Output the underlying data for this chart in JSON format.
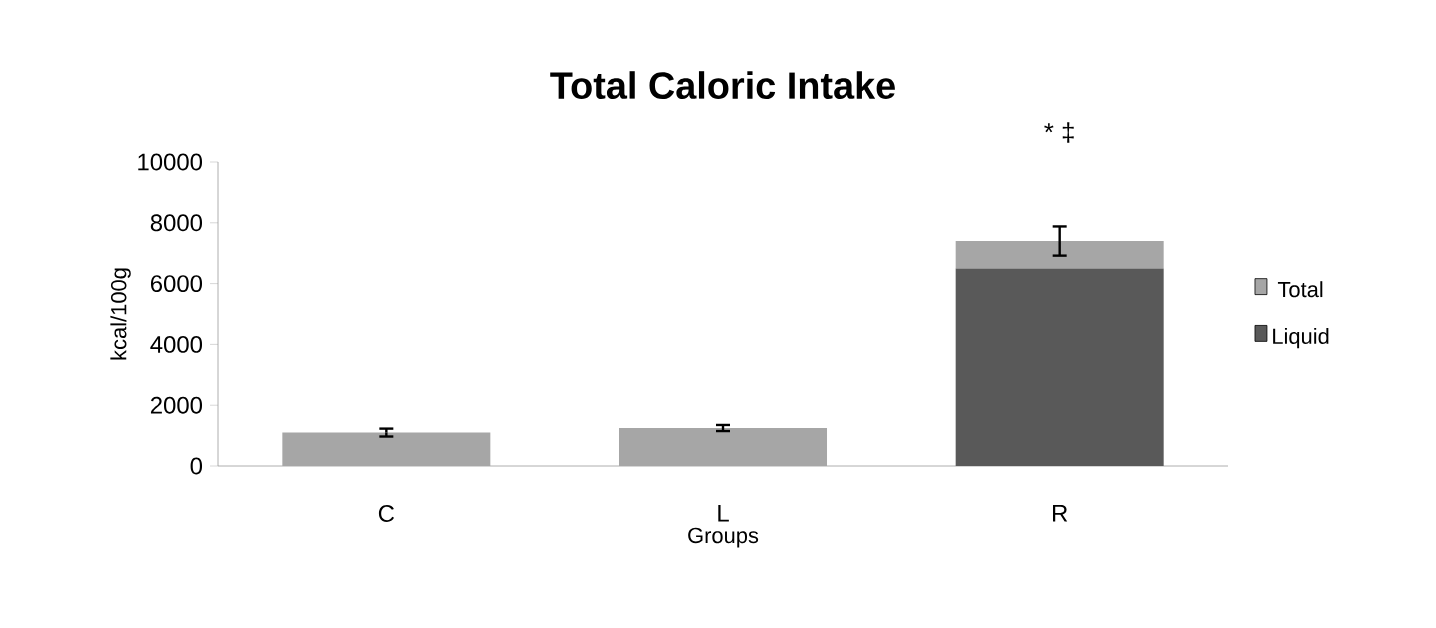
{
  "chart_data": {
    "type": "bar",
    "title": "Total Caloric Intake",
    "xlabel": "Groups",
    "ylabel": "kcal/100g",
    "categories": [
      "C",
      "L",
      "R"
    ],
    "stacked": true,
    "series": [
      {
        "name": "Liquid",
        "color": "#595959",
        "values": [
          0,
          0,
          6500
        ]
      },
      {
        "name": "Total",
        "color": "#a6a6a6",
        "values": [
          1100,
          1250,
          900
        ],
        "errors": [
          130,
          100,
          480
        ]
      }
    ],
    "ylim": [
      0,
      10000
    ],
    "yticks": [
      0,
      2000,
      4000,
      6000,
      8000,
      10000
    ],
    "grid": false,
    "legend": "right",
    "annotations": [
      "* ‡"
    ]
  }
}
